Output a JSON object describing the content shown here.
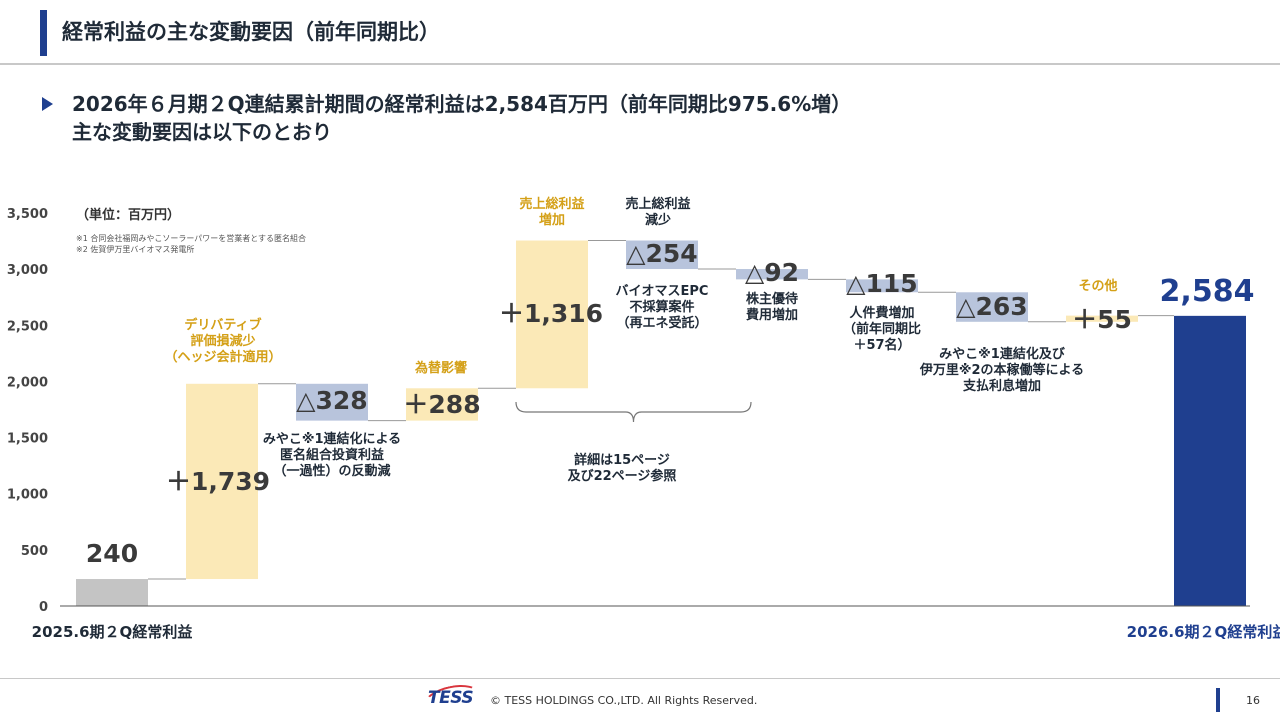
{
  "header": {
    "title": "経常利益の主な変動要因（前年同期比）"
  },
  "headline": {
    "line1": "2026年６月期２Q連結累計期間の経常利益は2,584百万円（前年同期比975.6%増）",
    "line2": "主な変動要因は以下のとおり"
  },
  "unit": "（単位：百万円）",
  "footnotes": [
    "※1 合同会社福岡みやこソーラーパワーを営業者とする匿名組合",
    "※2 佐賀伊万里バイオマス発電所"
  ],
  "colors": {
    "start": "#c4c4c4",
    "increase": "#fbe9b7",
    "decrease": "#b8c4dc",
    "end": "#1f3f8f",
    "gold_text": "#d4a017"
  },
  "chart_data": {
    "type": "bar",
    "subtype": "waterfall",
    "ylim": [
      0,
      3500
    ],
    "yticks": [
      "0",
      "500",
      "1,000",
      "1,500",
      "2,000",
      "2,500",
      "3,000",
      "3,500"
    ],
    "ytick_values": [
      0,
      500,
      1000,
      1500,
      2000,
      2500,
      3000,
      3500
    ],
    "bars": [
      {
        "kind": "start",
        "value": 240,
        "label": "240",
        "category": [
          "2025.6期２Q",
          "経常利益"
        ]
      },
      {
        "kind": "increase",
        "value": 1739,
        "label": "＋1,739",
        "note": [
          "デリバティブ",
          "評価損減少",
          "（ヘッジ会計適用）"
        ],
        "note_color": "gold"
      },
      {
        "kind": "decrease",
        "value": 328,
        "label": "△328",
        "note": [
          "みやこ※1連結化による",
          "匿名組合投資利益",
          "（一過性）の反動減"
        ],
        "note_color": "dark"
      },
      {
        "kind": "increase",
        "value": 288,
        "label": "＋288",
        "note": [
          "為替影響"
        ],
        "note_color": "gold"
      },
      {
        "kind": "increase",
        "value": 1316,
        "label": "＋1,316",
        "note": [
          "売上総利益",
          "増加"
        ],
        "note_color": "gold"
      },
      {
        "kind": "decrease",
        "value": 254,
        "label": "△254",
        "note": [
          "売上総利益",
          "減少"
        ],
        "note_color": "dark",
        "note2": [
          "バイオマスEPC",
          "不採算案件",
          "（再エネ受託）"
        ]
      },
      {
        "kind": "decrease",
        "value": 92,
        "label": "△92",
        "note": [
          "株主優待",
          "費用増加"
        ],
        "note_color": "dark"
      },
      {
        "kind": "decrease",
        "value": 115,
        "label": "△115",
        "note": [
          "人件費増加",
          "（前年同期比",
          "＋57名）"
        ],
        "note_color": "dark"
      },
      {
        "kind": "decrease",
        "value": 263,
        "label": "△263",
        "note": [
          "みやこ※1連結化及び",
          "伊万里※2の本稼働等による",
          "支払利息増加"
        ],
        "note_color": "dark"
      },
      {
        "kind": "increase",
        "value": 55,
        "label": "＋55",
        "note": [
          "その他"
        ],
        "note_color": "gold"
      },
      {
        "kind": "end",
        "value": 2584,
        "label": "2,584",
        "category": [
          "2026.6期２Q",
          "経常利益"
        ]
      }
    ],
    "bracket_note": [
      "詳細は15ページ",
      "及び22ページ参照"
    ]
  },
  "footer": {
    "logo": "TESS",
    "copyright": "© TESS HOLDINGS CO.,LTD. All Rights Reserved.",
    "page": "16"
  }
}
